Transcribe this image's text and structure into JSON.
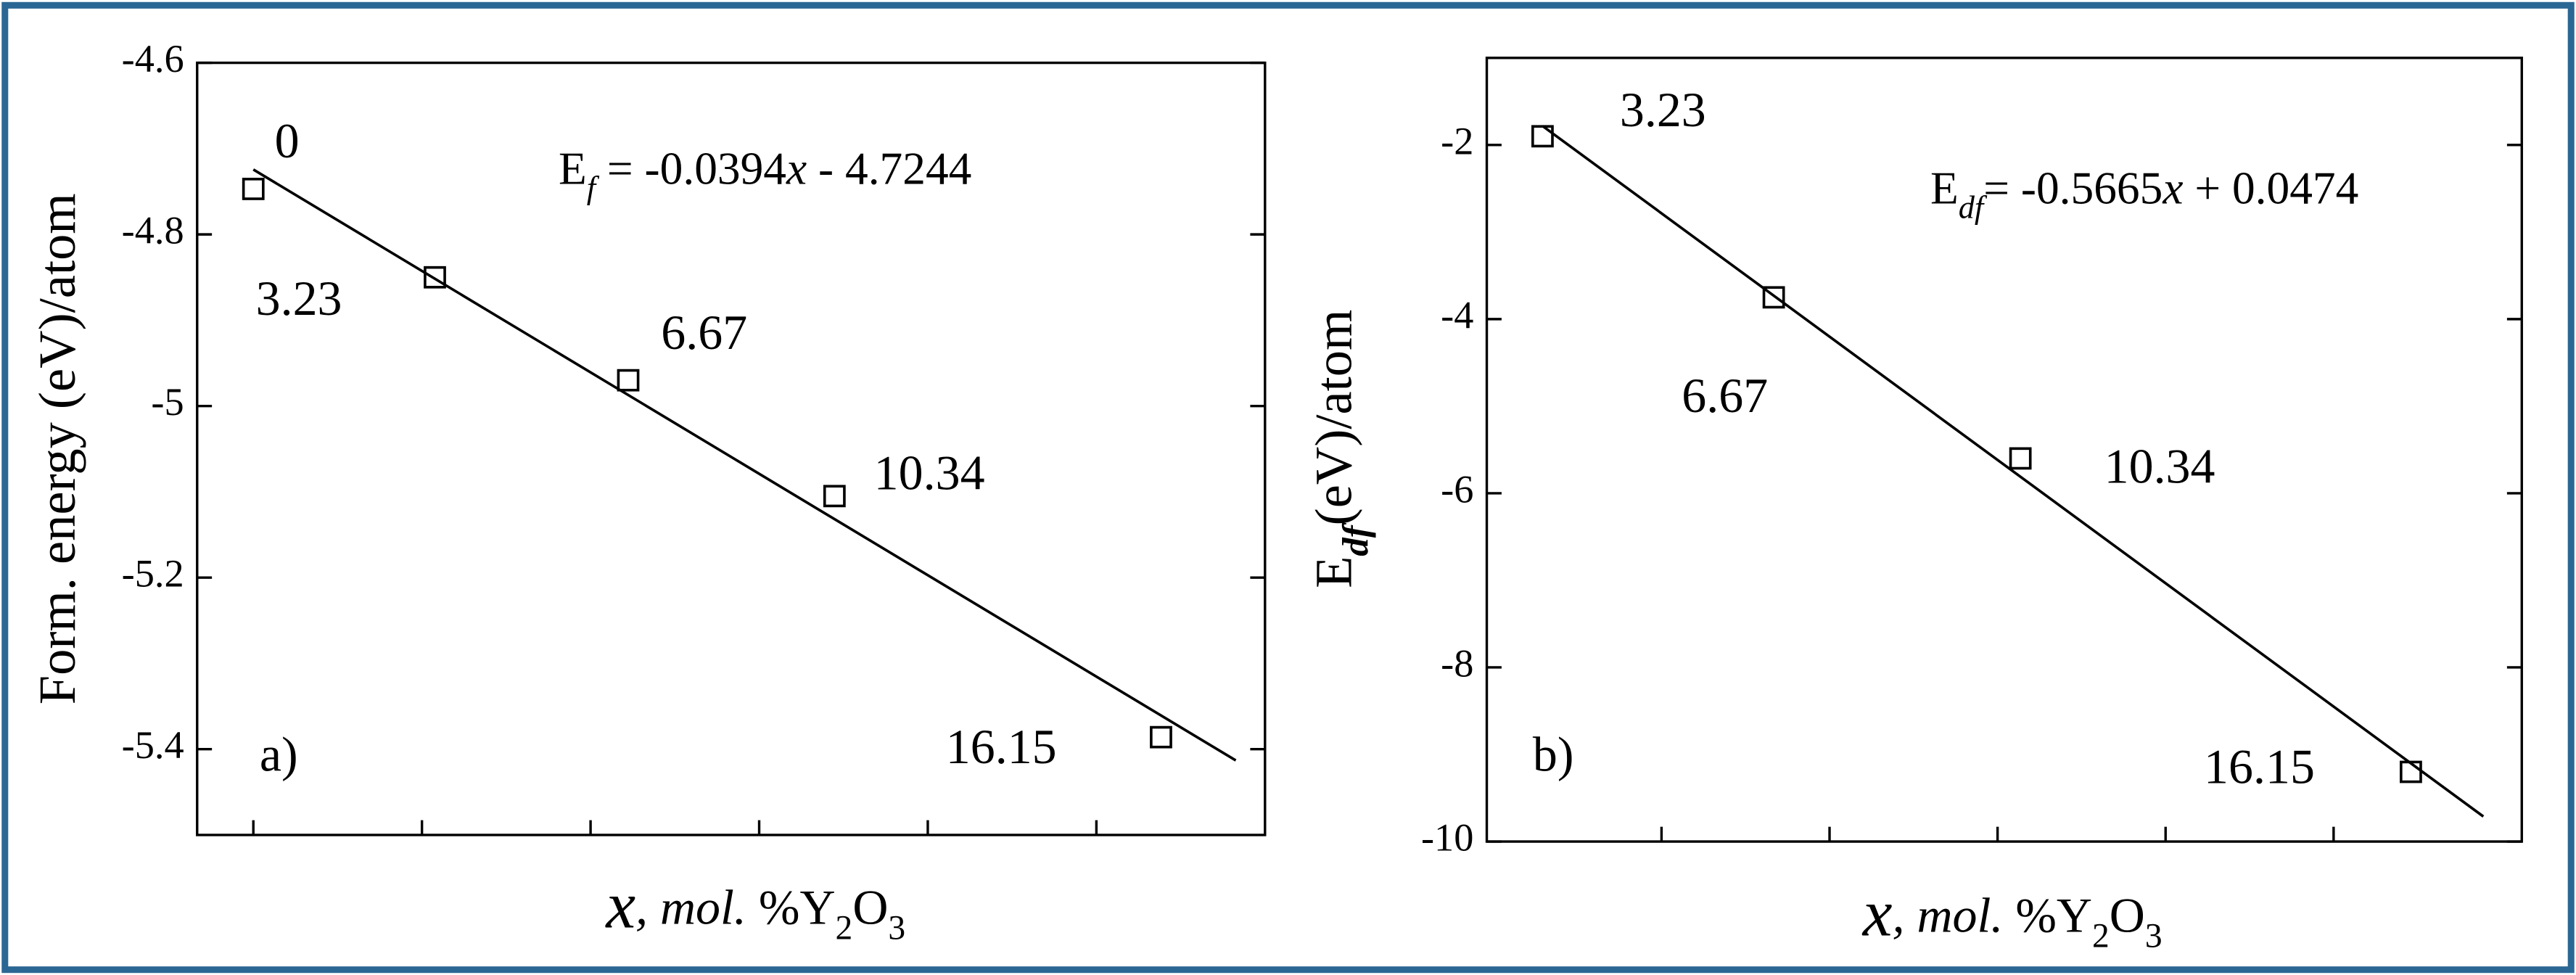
{
  "chart_data": [
    {
      "type": "scatter",
      "annotation": "a)",
      "ylabel": [
        {
          "text": "Form. energy (eV)/atom"
        }
      ],
      "xlabel": [
        {
          "text": "x",
          "style": "big-italic"
        },
        {
          "text": ", mol. ",
          "style": "italic"
        },
        {
          "text": "%Y"
        },
        {
          "text": "2",
          "style": "sub"
        },
        {
          "text": "O"
        },
        {
          "text": "3",
          "style": "sub"
        }
      ],
      "equation": [
        {
          "text": "E"
        },
        {
          "text": "f",
          "style": "sub-italic"
        },
        {
          "text": " = -0.0394"
        },
        {
          "text": "x",
          "style": "italic"
        },
        {
          "text": " - 4.7244"
        }
      ],
      "fit": {
        "slope": -0.0394,
        "intercept": -4.7244
      },
      "x": [
        0,
        3.23,
        6.67,
        10.34,
        16.15
      ],
      "values": [
        -4.747,
        -4.85,
        -4.97,
        -5.105,
        -5.386
      ],
      "xlim": [
        -1,
        18
      ],
      "xticks": [
        0,
        3,
        6,
        9,
        12,
        15
      ],
      "ylim": [
        -5.5,
        -4.6
      ],
      "yticks": [
        -4.6,
        -4.8,
        -5,
        -5.2,
        -5.4
      ],
      "color": "#000000"
    },
    {
      "type": "scatter",
      "annotation": "b)",
      "ylabel": [
        {
          "text": "E"
        },
        {
          "text": "df",
          "style": "sub-bold-italic"
        },
        {
          "text": "(eV)/atom"
        }
      ],
      "xlabel": [
        {
          "text": "x",
          "style": "big-italic"
        },
        {
          "text": ", mol. ",
          "style": "italic"
        },
        {
          "text": "%Y"
        },
        {
          "text": "2",
          "style": "sub"
        },
        {
          "text": "O"
        },
        {
          "text": "3",
          "style": "sub"
        }
      ],
      "equation": [
        {
          "text": "E"
        },
        {
          "text": "df",
          "style": "sub-italic"
        },
        {
          "text": "= -0.5665"
        },
        {
          "text": "x",
          "style": "italic"
        },
        {
          "text": " + 0.0474"
        }
      ],
      "fit": {
        "slope": -0.5665,
        "intercept": 0.0474
      },
      "x": [
        3.23,
        6.67,
        10.34,
        16.15
      ],
      "values": [
        -1.9,
        -3.75,
        -5.6,
        -9.2
      ],
      "xlim": [
        2.4,
        17.8
      ],
      "xticks": [
        5,
        7.5,
        10,
        12.5,
        15
      ],
      "ylim": [
        -10,
        -1
      ],
      "yticks": [
        -2,
        -4,
        -6,
        -8,
        -10
      ],
      "color": "#000000"
    }
  ]
}
